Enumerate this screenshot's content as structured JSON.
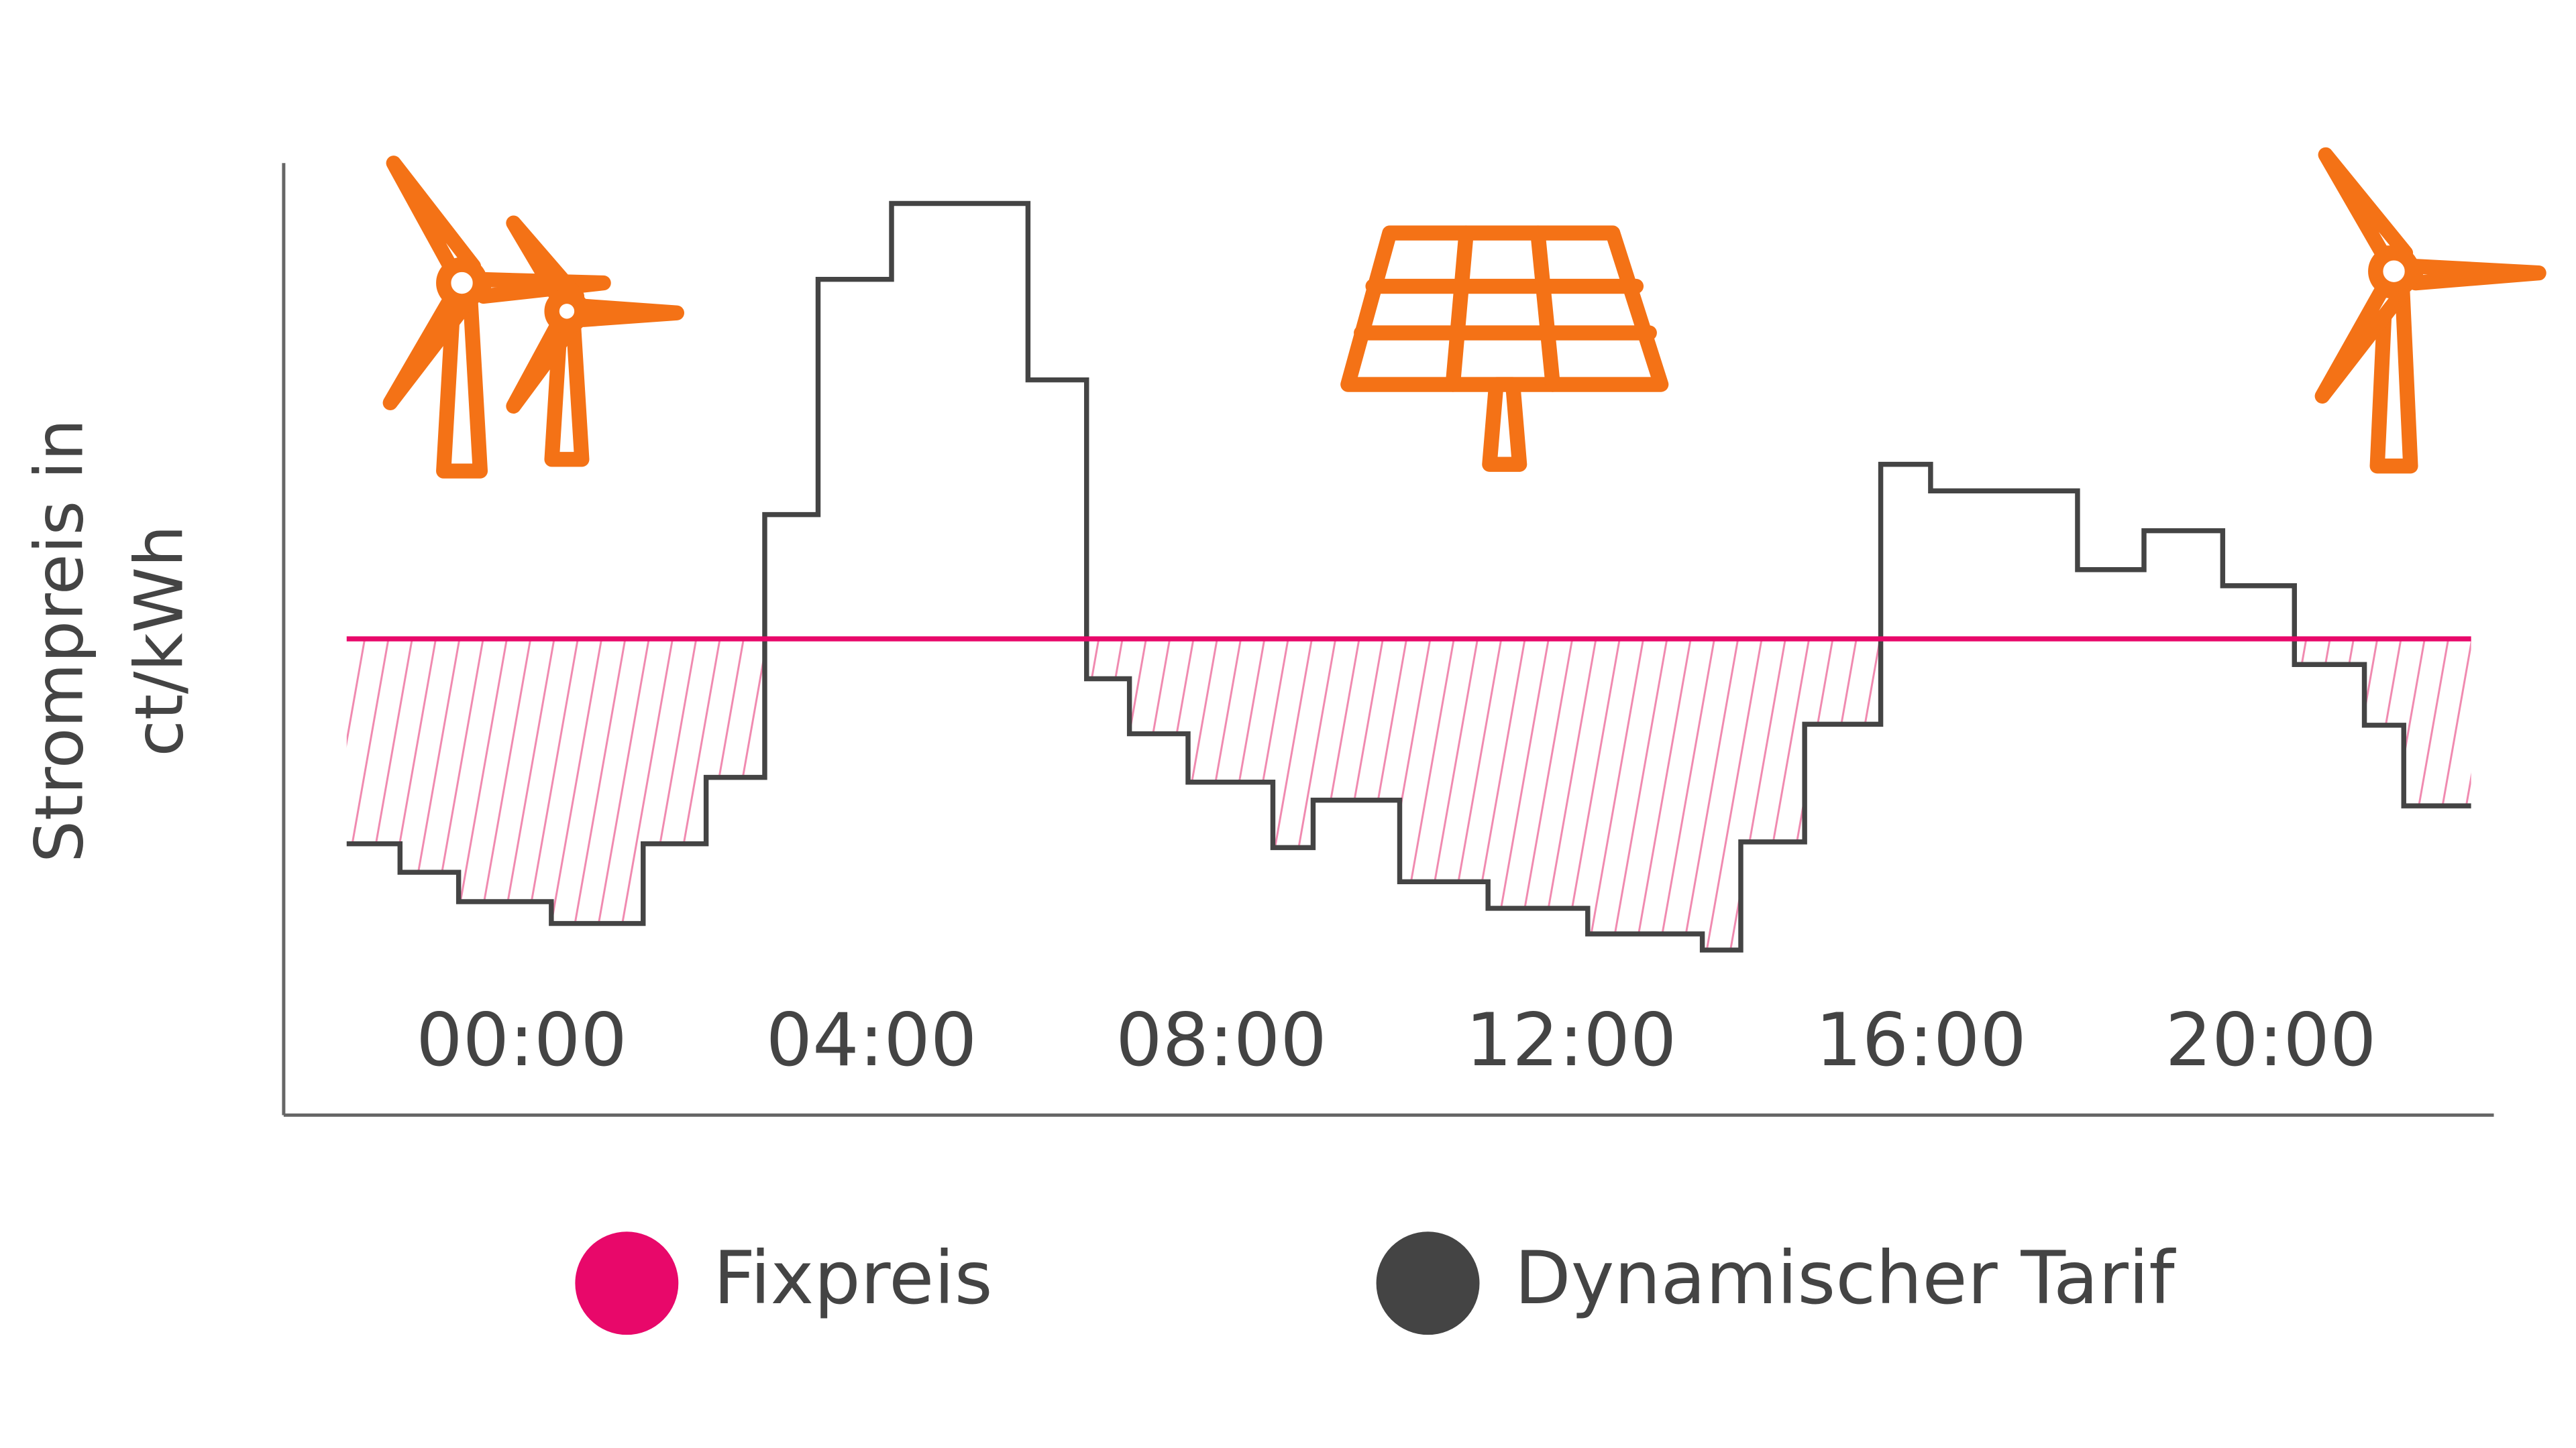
{
  "chart_data": {
    "type": "line",
    "y_label": [
      "Strompreis in",
      "ct/kWh"
    ],
    "xlim": [
      -2.72,
      22.55
    ],
    "ylim": [
      0,
      100
    ],
    "xticks": [
      {
        "value": 0,
        "label": "00:00"
      },
      {
        "value": 4,
        "label": "04:00"
      },
      {
        "value": 8,
        "label": "08:00"
      },
      {
        "value": 12,
        "label": "12:00"
      },
      {
        "value": 16,
        "label": "16:00"
      },
      {
        "value": 20,
        "label": "20:00"
      }
    ],
    "step": true,
    "hatch_below_series": 0,
    "series": [
      {
        "name": "Fixpreis",
        "color": "#e8086a",
        "x": [
          -2.0,
          22.29
        ],
        "values": [
          50.2,
          50.2
        ]
      },
      {
        "name": "Dynamischer Tarif",
        "color": "#444444",
        "x": [
          -2.0,
          -1.39,
          -0.72,
          0.34,
          1.39,
          2.11,
          2.78,
          3.39,
          4.23,
          5.79,
          6.46,
          6.95,
          7.62,
          8.59,
          9.05,
          10.04,
          11.05,
          12.19,
          13.5,
          13.94,
          14.67,
          15.54,
          16.11,
          17.79,
          18.55,
          19.45,
          20.27,
          21.07,
          21.52,
          22.29
        ],
        "values": [
          28.6,
          25.6,
          22.5,
          20.2,
          28.6,
          35.6,
          63.3,
          88.1,
          96.1,
          77.5,
          46.0,
          40.2,
          35.1,
          28.2,
          33.2,
          24.6,
          21.8,
          19.1,
          17.4,
          28.8,
          41.2,
          68.6,
          65.8,
          57.5,
          61.6,
          55.8,
          47.5,
          41.1,
          32.6,
          32.6
        ]
      }
    ]
  }
}
